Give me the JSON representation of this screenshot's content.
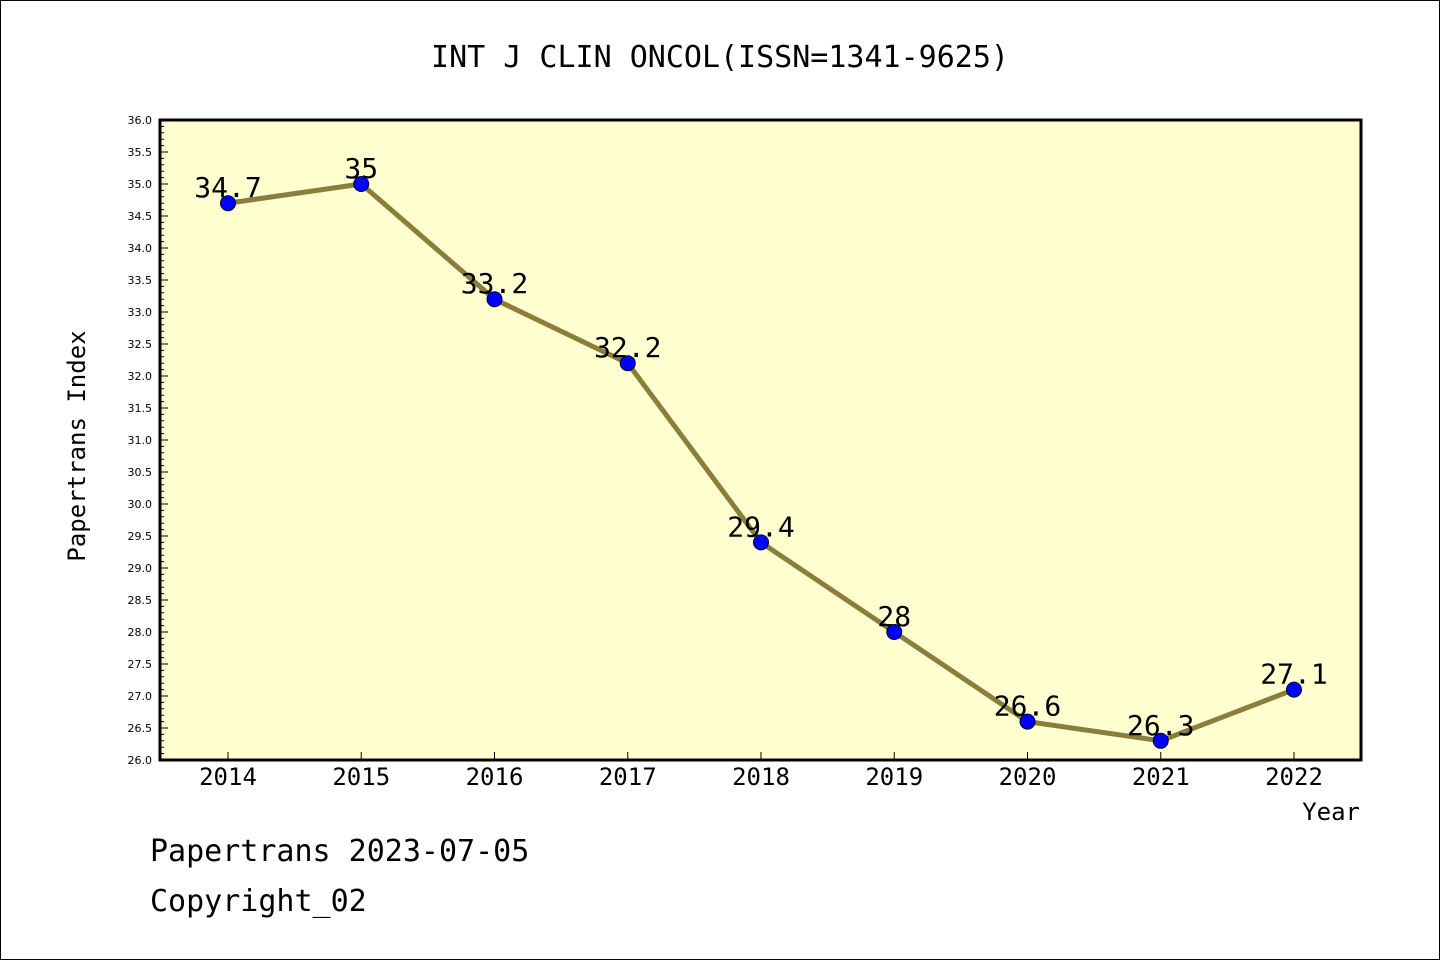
{
  "chart_data": {
    "type": "line",
    "title": "INT J CLIN ONCOL(ISSN=1341-9625)",
    "xlabel": "Year",
    "ylabel": "Papertrans Index",
    "categories": [
      "2014",
      "2015",
      "2016",
      "2017",
      "2018",
      "2019",
      "2020",
      "2021",
      "2022"
    ],
    "values": [
      34.7,
      35,
      33.2,
      32.2,
      29.4,
      28,
      26.6,
      26.3,
      27.1
    ],
    "data_labels": [
      "34.7",
      "35",
      "33.2",
      "32.2",
      "29.4",
      "28",
      "26.6",
      "26.3",
      "27.1"
    ],
    "ylim": [
      26.0,
      36.0
    ],
    "yticks": [
      "26.0",
      "26.5",
      "27.0",
      "27.5",
      "28.0",
      "28.5",
      "29.0",
      "29.5",
      "30.0",
      "30.5",
      "31.0",
      "31.5",
      "32.0",
      "32.5",
      "33.0",
      "33.5",
      "34.0",
      "34.5",
      "35.0",
      "35.5",
      "36.0"
    ],
    "grid": false,
    "colors": {
      "plot_background": "#FFFFD0",
      "line": "#8B7D3A",
      "marker": "#0000FF"
    }
  },
  "footer": {
    "line1": "Papertrans 2023-07-05",
    "line2": "Copyright_02"
  }
}
